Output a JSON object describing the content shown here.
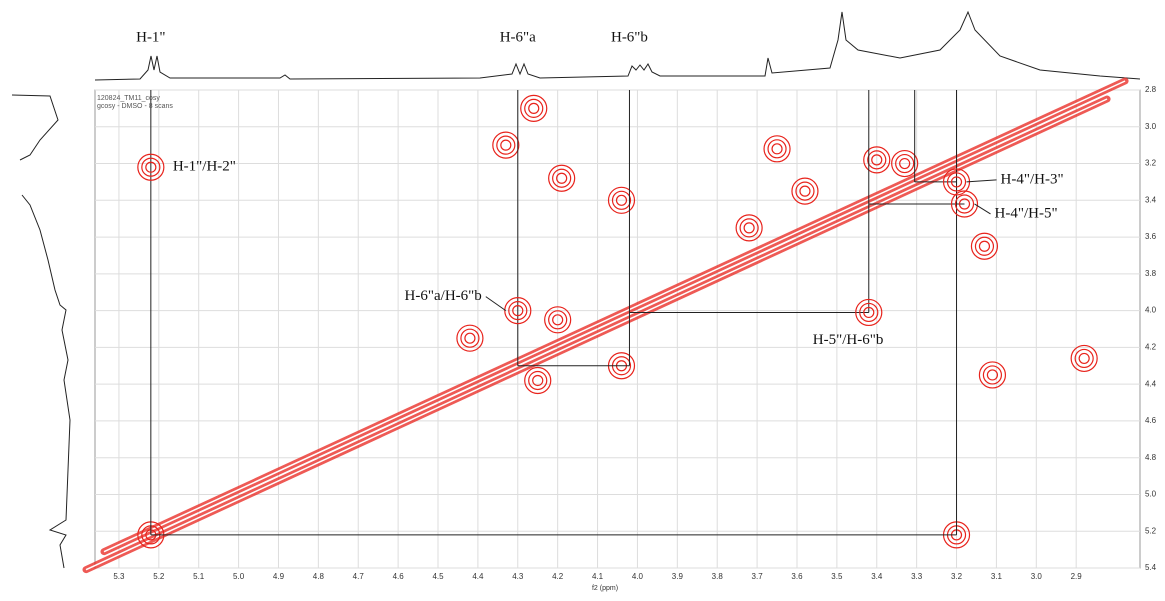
{
  "chart_data": {
    "type": "cosy",
    "header_lines": [
      "120824_TM11_cosy",
      "gcosy - DMSO - 8 scans"
    ],
    "xlabel": "f2 (ppm)",
    "xlim": [
      5.36,
      2.74
    ],
    "ylim": [
      2.8,
      5.4
    ],
    "xticks": [
      5.3,
      5.2,
      5.1,
      {
        "value": 5,
        "label": "5.0"
      },
      4.9,
      4.8,
      4.7,
      4.6,
      4.5,
      4.4,
      4.3,
      4.2,
      4.1,
      {
        "value": 4,
        "label": "4.0"
      },
      3.9,
      3.8,
      3.7,
      3.6,
      3.5,
      3.4,
      3.3,
      3.2,
      3.1,
      {
        "value": 3,
        "label": "3.0"
      },
      2.9
    ],
    "yticks": [
      2.8,
      {
        "value": 3,
        "label": "3.0"
      },
      3.2,
      3.4,
      3.6,
      3.8,
      {
        "value": 4,
        "label": "4.0"
      },
      4.2,
      4.4,
      4.6,
      4.8,
      {
        "value": 5,
        "label": "5.0"
      },
      5.2,
      5.4
    ],
    "color": "#e8231c",
    "grid": true,
    "top_labels": [
      {
        "text": "H-1\"",
        "x": 5.22
      },
      {
        "text": "H-6\"a",
        "x": 4.3
      },
      {
        "text": "H-6\"b",
        "x": 4.02
      }
    ],
    "annotations": [
      {
        "text": "H-1\"/H-2\"",
        "x": 5.22,
        "y": 3.22
      },
      {
        "text": "H-4\"/H-3\"",
        "x": 3.2,
        "y": 3.3
      },
      {
        "text": "H-4\"/H-5\"",
        "x": 3.18,
        "y": 3.42
      },
      {
        "text": "H-6\"a/H-6\"b",
        "x": 4.3,
        "y": 4.0
      },
      {
        "text": "H-5\"/H-6\"b",
        "x": 3.42,
        "y": 4.01
      }
    ],
    "peaks": {
      "x": [
        4.33,
        4.26,
        4.19,
        4.04,
        4.04,
        4.42,
        4.2,
        4.25,
        3.4,
        3.65,
        3.2,
        5.22,
        3.13,
        3.11,
        2.88,
        3.33,
        3.58,
        3.72
      ],
      "y": [
        3.1,
        2.9,
        3.28,
        3.4,
        4.3,
        4.15,
        4.05,
        4.38,
        3.18,
        3.12,
        5.22,
        5.22,
        3.65,
        4.35,
        4.26,
        3.2,
        3.35,
        3.55
      ]
    }
  }
}
